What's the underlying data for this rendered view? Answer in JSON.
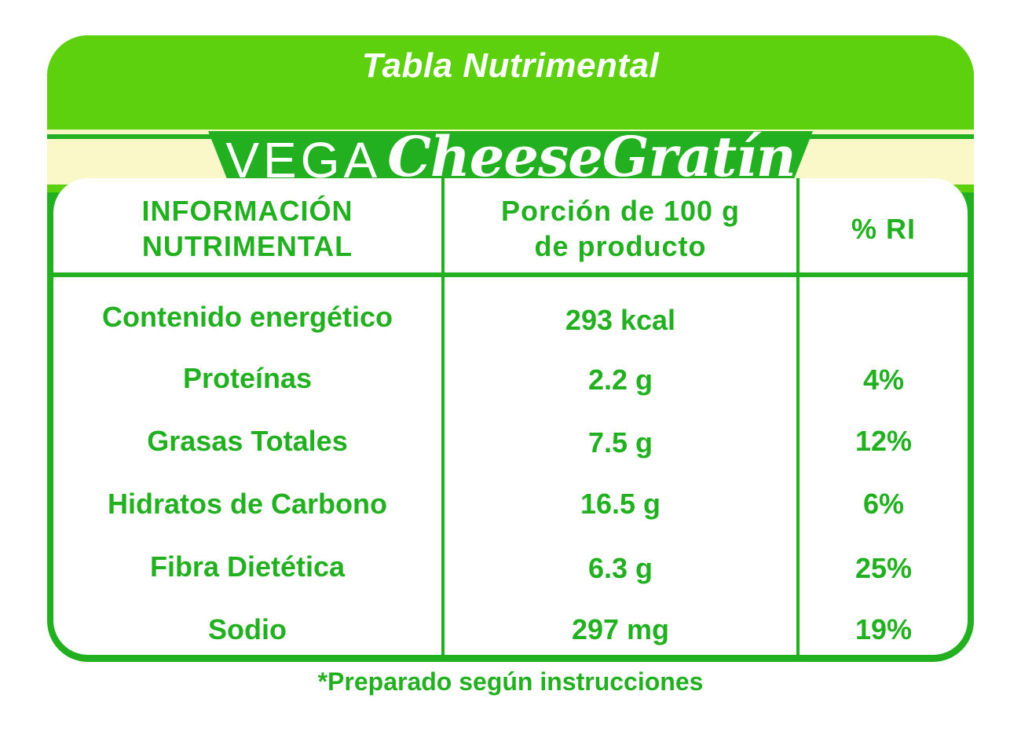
{
  "header": {
    "title": "Tabla Nutrimental",
    "brand_prefix": "VEGA",
    "brand_name": "CheeseGratín"
  },
  "table": {
    "col1_header_line1": "INFORMACIÓN",
    "col1_header_line2": "NUTRIMENTAL",
    "col2_header_line1": "Porción de 100 g",
    "col2_header_line2": "de producto",
    "col3_header": "% RI",
    "rows": [
      {
        "name": "Contenido energético",
        "amount": "293 kcal",
        "ri": ""
      },
      {
        "name": "Proteínas",
        "amount": "2.2 g",
        "ri": "4%"
      },
      {
        "name": "Grasas Totales",
        "amount": "7.5 g",
        "ri": "12%"
      },
      {
        "name": "Hidratos de Carbono",
        "amount": "16.5 g",
        "ri": "6%"
      },
      {
        "name": "Fibra Dietética",
        "amount": "6.3 g",
        "ri": "25%"
      },
      {
        "name": "Sodio",
        "amount": "297 mg",
        "ri": "19%"
      }
    ]
  },
  "footnote": "*Preparado según instrucciones",
  "colors": {
    "dark_green": "#22b021",
    "light_green": "#5ed10f",
    "cream": "#faf8c8",
    "white": "#ffffff"
  }
}
